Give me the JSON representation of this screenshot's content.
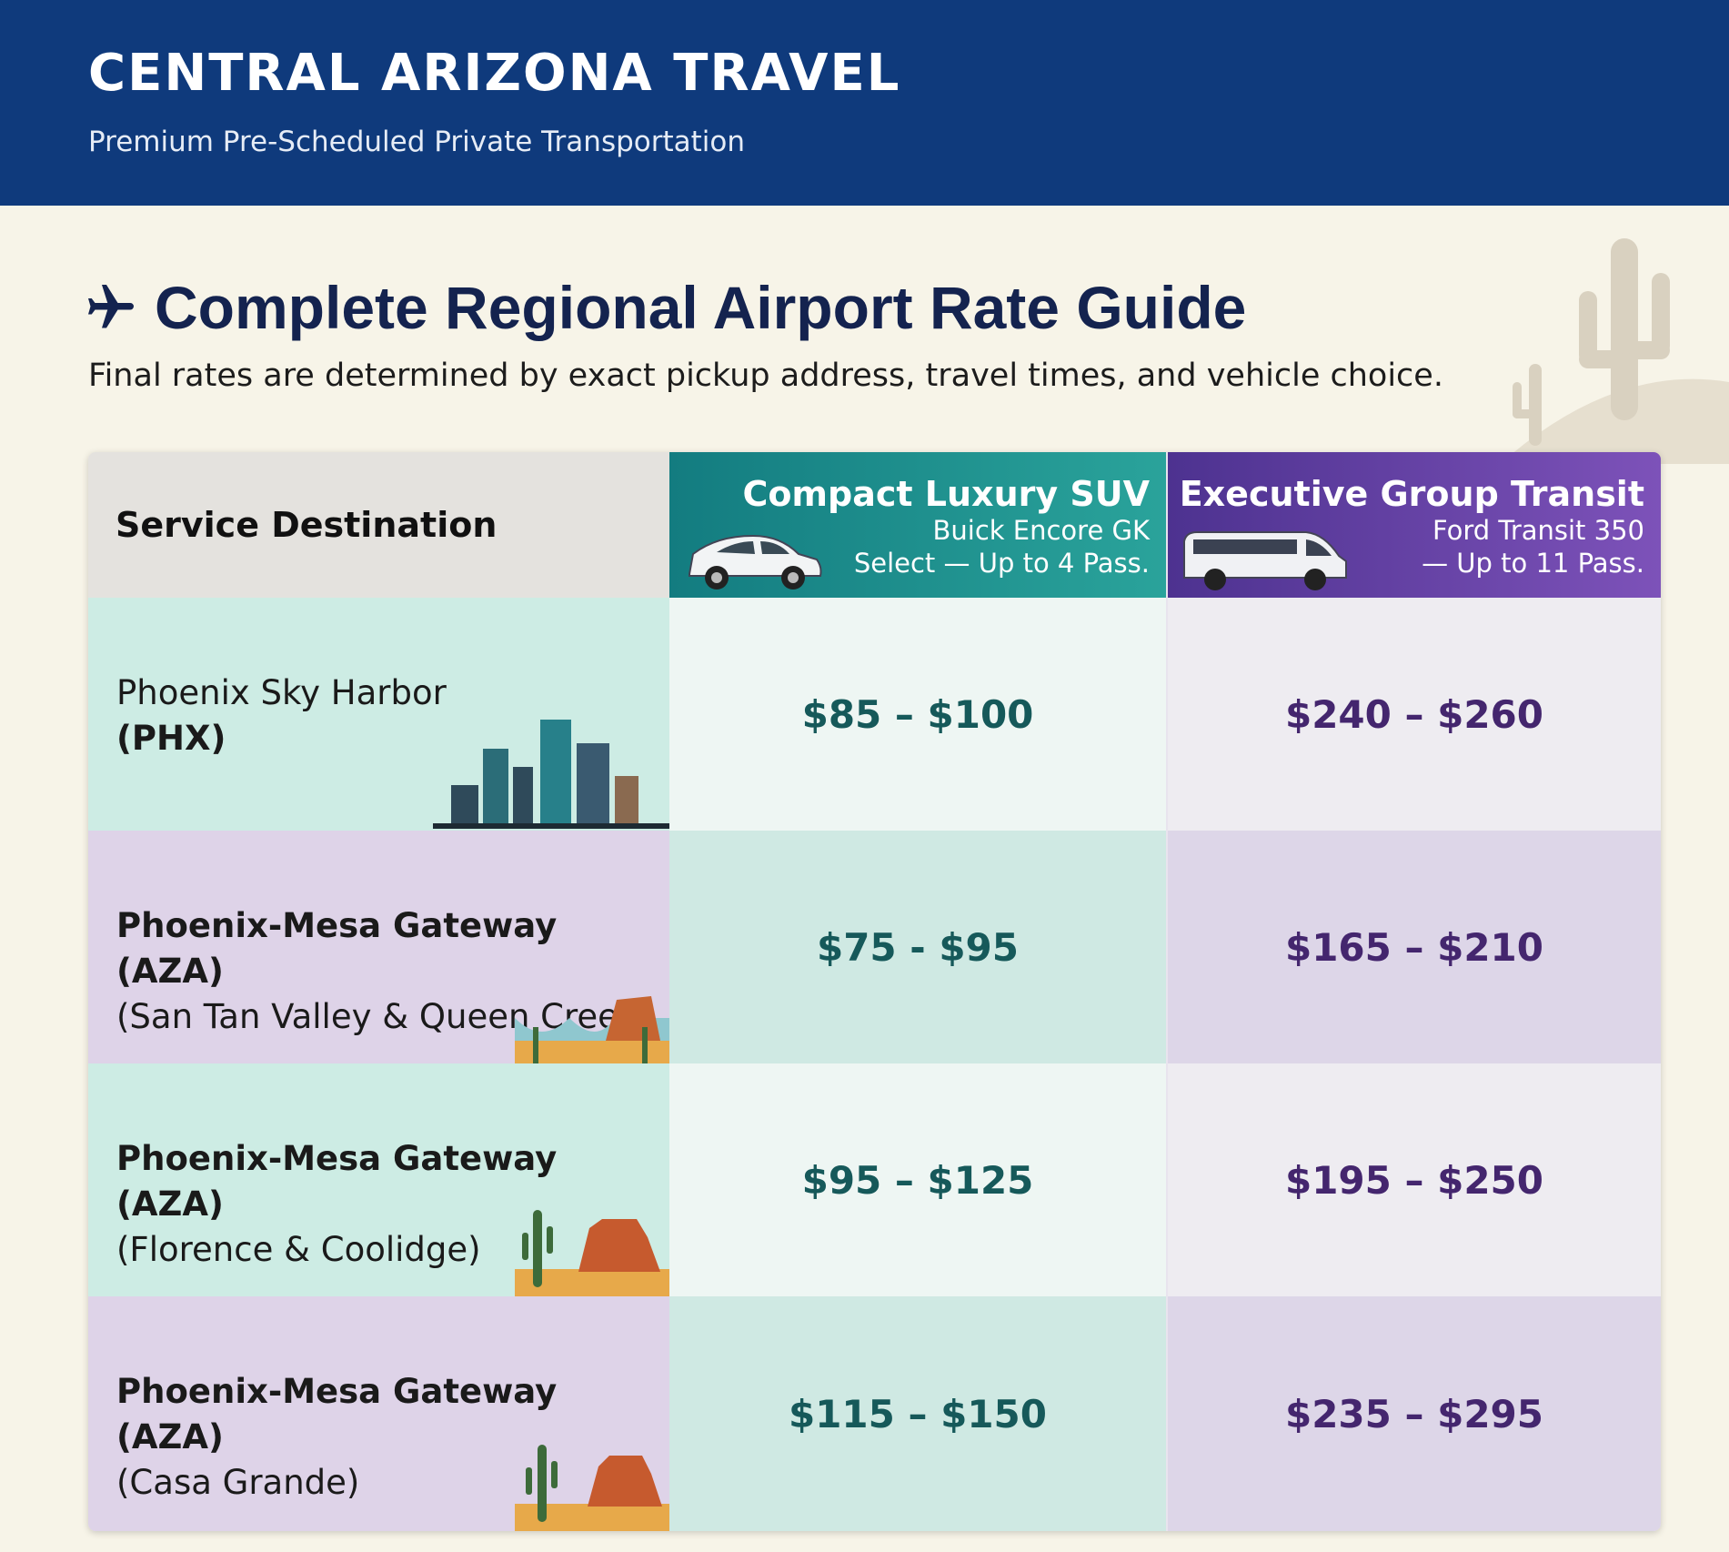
{
  "header": {
    "title": "CENTRAL ARIZONA TRAVEL",
    "subtitle": "Premium Pre-Scheduled Private Transportation"
  },
  "section": {
    "title": "Complete Regional Airport Rate Guide",
    "subtitle": "Final rates are determined by exact pickup address, travel times, and vehicle choice."
  },
  "table": {
    "corner": "Service Destination",
    "columns": [
      {
        "title": "Compact Luxury SUV",
        "lines": [
          "Buick Encore GK",
          "Select — Up to 4 Pass."
        ]
      },
      {
        "title": "Executive Group Transit",
        "lines": [
          "Ford Transit 350",
          "— Up to 11 Pass."
        ]
      }
    ],
    "rows": [
      {
        "name": "Phoenix Sky Harbor",
        "detail": "(PHX)",
        "cells": [
          "$85 – $100",
          "$240 – $260"
        ]
      },
      {
        "name": "Phoenix-Mesa Gateway (AZA)",
        "detail": "(San Tan Valley & Queen Creek)",
        "cells": [
          "$75 - $95",
          "$165 – $210"
        ]
      },
      {
        "name": "Phoenix-Mesa Gateway (AZA)",
        "detail": "(Florence & Coolidge)",
        "cells": [
          "$95 – $125",
          "$195 – $250"
        ]
      },
      {
        "name": "Phoenix-Mesa Gateway (AZA)",
        "detail": "(Casa Grande)",
        "cells": [
          "$115 – $150",
          "$235 – $295"
        ]
      }
    ]
  }
}
